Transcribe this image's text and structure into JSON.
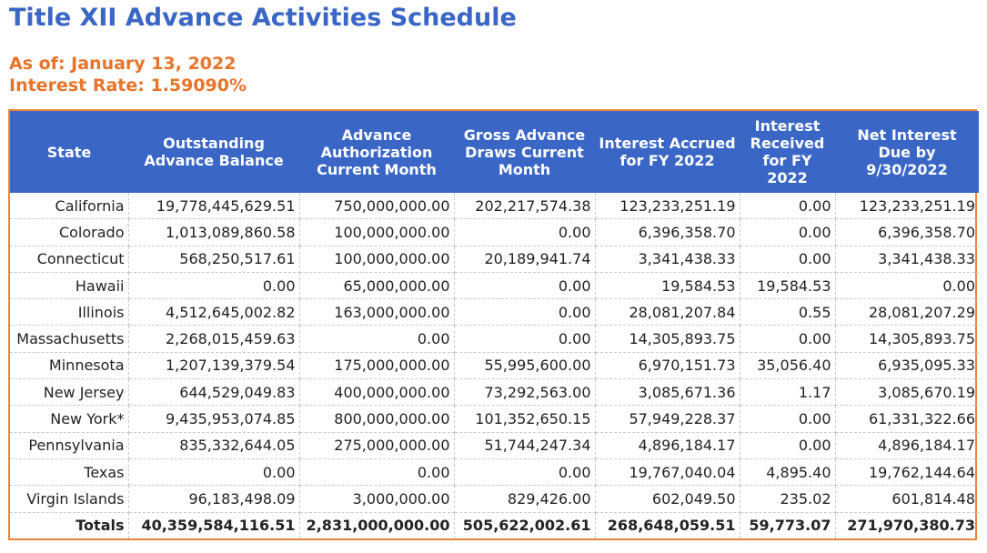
{
  "page": {
    "title": "Title XII Advance Activities Schedule",
    "as_of": "As of: January 13, 2022",
    "interest_rate": "Interest Rate: 1.59090%"
  },
  "table": {
    "columns": [
      {
        "label": "State"
      },
      {
        "label": "Outstanding Advance Balance"
      },
      {
        "label": "Advance Authorization Current Month"
      },
      {
        "label": "Gross Advance Draws Current Month"
      },
      {
        "label": "Interest Accrued for FY 2022"
      },
      {
        "label": "Interest Received for FY 2022"
      },
      {
        "label": "Net Interest Due by 9/30/2022"
      }
    ],
    "rows": [
      {
        "cells": [
          "California",
          "19,778,445,629.51",
          "750,000,000.00",
          "202,217,574.38",
          "123,233,251.19",
          "0.00",
          "123,233,251.19"
        ]
      },
      {
        "cells": [
          "Colorado",
          "1,013,089,860.58",
          "100,000,000.00",
          "0.00",
          "6,396,358.70",
          "0.00",
          "6,396,358.70"
        ]
      },
      {
        "cells": [
          "Connecticut",
          "568,250,517.61",
          "100,000,000.00",
          "20,189,941.74",
          "3,341,438.33",
          "0.00",
          "3,341,438.33"
        ]
      },
      {
        "cells": [
          "Hawaii",
          "0.00",
          "65,000,000.00",
          "0.00",
          "19,584.53",
          "19,584.53",
          "0.00"
        ]
      },
      {
        "cells": [
          "Illinois",
          "4,512,645,002.82",
          "163,000,000.00",
          "0.00",
          "28,081,207.84",
          "0.55",
          "28,081,207.29"
        ]
      },
      {
        "cells": [
          "Massachusetts",
          "2,268,015,459.63",
          "0.00",
          "0.00",
          "14,305,893.75",
          "0.00",
          "14,305,893.75"
        ]
      },
      {
        "cells": [
          "Minnesota",
          "1,207,139,379.54",
          "175,000,000.00",
          "55,995,600.00",
          "6,970,151.73",
          "35,056.40",
          "6,935,095.33"
        ]
      },
      {
        "cells": [
          "New Jersey",
          "644,529,049.83",
          "400,000,000.00",
          "73,292,563.00",
          "3,085,671.36",
          "1.17",
          "3,085,670.19"
        ]
      },
      {
        "cells": [
          "New York*",
          "9,435,953,074.85",
          "800,000,000.00",
          "101,352,650.15",
          "57,949,228.37",
          "0.00",
          "61,331,322.66"
        ]
      },
      {
        "cells": [
          "Pennsylvania",
          "835,332,644.05",
          "275,000,000.00",
          "51,744,247.34",
          "4,896,184.17",
          "0.00",
          "4,896,184.17"
        ]
      },
      {
        "cells": [
          "Texas",
          "0.00",
          "0.00",
          "0.00",
          "19,767,040.04",
          "4,895.40",
          "19,762,144.64"
        ]
      },
      {
        "cells": [
          "Virgin Islands",
          "96,183,498.09",
          "3,000,000.00",
          "829,426.00",
          "602,049.50",
          "235.02",
          "601,814.48"
        ]
      }
    ],
    "totals": {
      "cells": [
        "Totals",
        "40,359,584,116.51",
        "2,831,000,000.00",
        "505,622,002.61",
        "268,648,059.51",
        "59,773.07",
        "271,970,380.73"
      ]
    }
  },
  "colors": {
    "title": "#3a66c6",
    "meta": "#e8742a",
    "header_bg": "#3a66c6",
    "border": "#e8863a"
  }
}
